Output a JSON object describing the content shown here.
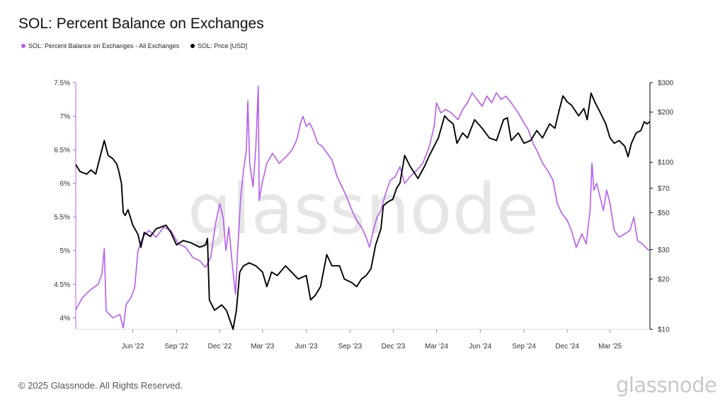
{
  "title": "SOL: Percent Balance on Exchanges",
  "footer": "© 2025 Glassnode. All Rights Reserved.",
  "brand": "glassnode",
  "watermark": "glassnode",
  "chart_data": {
    "type": "line",
    "title": "SOL: Percent Balance on Exchanges",
    "legend_position": "top-left",
    "grid": false,
    "x_range": [
      "2022-02-01",
      "2025-05-24"
    ],
    "x_ticks": [
      {
        "date": "2022-06-01",
        "label": "Jun '22"
      },
      {
        "date": "2022-09-01",
        "label": "Sep '22"
      },
      {
        "date": "2022-12-01",
        "label": "Dec '22"
      },
      {
        "date": "2023-03-01",
        "label": "Mar '23"
      },
      {
        "date": "2023-06-01",
        "label": "Jun '23"
      },
      {
        "date": "2023-09-01",
        "label": "Sep '23"
      },
      {
        "date": "2023-12-01",
        "label": "Dec '23"
      },
      {
        "date": "2024-03-01",
        "label": "Mar '24"
      },
      {
        "date": "2024-06-01",
        "label": "Jun '24"
      },
      {
        "date": "2024-09-01",
        "label": "Sep '24"
      },
      {
        "date": "2024-12-01",
        "label": "Dec '24"
      },
      {
        "date": "2025-03-01",
        "label": "Mar '25"
      }
    ],
    "y_left": {
      "range": [
        3.83,
        7.5
      ],
      "ticks": [
        {
          "v": 4.0,
          "label": "4%"
        },
        {
          "v": 4.5,
          "label": "4.5%"
        },
        {
          "v": 5.0,
          "label": "5%"
        },
        {
          "v": 5.5,
          "label": "5.5%"
        },
        {
          "v": 6.0,
          "label": "6%"
        },
        {
          "v": 6.5,
          "label": "6.5%"
        },
        {
          "v": 7.0,
          "label": "7%"
        },
        {
          "v": 7.5,
          "label": "7.5%"
        }
      ]
    },
    "y_right": {
      "scale": "log",
      "range": [
        10,
        300
      ],
      "ticks": [
        {
          "v": 10,
          "label": "$10"
        },
        {
          "v": 20,
          "label": "$20"
        },
        {
          "v": 30,
          "label": "$30"
        },
        {
          "v": 50,
          "label": "$50"
        },
        {
          "v": 70,
          "label": "$70"
        },
        {
          "v": 100,
          "label": "$100"
        },
        {
          "v": 200,
          "label": "$200"
        },
        {
          "v": 300,
          "label": "$300"
        }
      ]
    },
    "series": [
      {
        "name": "SOL: Percent Balance on Exchanges - All Exchanges",
        "color": "#b55cf0",
        "axis": "left",
        "points": [
          [
            "2022-02-01",
            4.12
          ],
          [
            "2022-02-15",
            4.3
          ],
          [
            "2022-03-01",
            4.4
          ],
          [
            "2022-03-20",
            4.5
          ],
          [
            "2022-03-28",
            4.65
          ],
          [
            "2022-04-02",
            5.03
          ],
          [
            "2022-04-06",
            4.1
          ],
          [
            "2022-04-20",
            4.0
          ],
          [
            "2022-05-05",
            4.05
          ],
          [
            "2022-05-12",
            3.85
          ],
          [
            "2022-05-18",
            4.2
          ],
          [
            "2022-05-28",
            4.3
          ],
          [
            "2022-06-05",
            4.45
          ],
          [
            "2022-06-12",
            5.0
          ],
          [
            "2022-06-22",
            5.2
          ],
          [
            "2022-07-05",
            5.3
          ],
          [
            "2022-07-20",
            5.2
          ],
          [
            "2022-08-05",
            5.35
          ],
          [
            "2022-08-20",
            5.3
          ],
          [
            "2022-09-05",
            5.1
          ],
          [
            "2022-09-20",
            5.05
          ],
          [
            "2022-10-05",
            4.9
          ],
          [
            "2022-10-20",
            4.85
          ],
          [
            "2022-11-01",
            4.75
          ],
          [
            "2022-11-12",
            4.9
          ],
          [
            "2022-11-22",
            5.4
          ],
          [
            "2022-12-01",
            5.7
          ],
          [
            "2022-12-08",
            5.5
          ],
          [
            "2022-12-14",
            5.0
          ],
          [
            "2022-12-20",
            5.35
          ],
          [
            "2022-12-28",
            4.75
          ],
          [
            "2023-01-03",
            4.35
          ],
          [
            "2023-01-08",
            5.05
          ],
          [
            "2023-01-14",
            5.8
          ],
          [
            "2023-01-20",
            6.2
          ],
          [
            "2023-01-26",
            6.5
          ],
          [
            "2023-01-29",
            7.23
          ],
          [
            "2023-02-02",
            6.3
          ],
          [
            "2023-02-09",
            5.95
          ],
          [
            "2023-02-15",
            6.55
          ],
          [
            "2023-02-20",
            7.45
          ],
          [
            "2023-02-22",
            5.75
          ],
          [
            "2023-02-28",
            6.0
          ],
          [
            "2023-03-10",
            6.3
          ],
          [
            "2023-03-22",
            6.45
          ],
          [
            "2023-04-05",
            6.3
          ],
          [
            "2023-04-20",
            6.4
          ],
          [
            "2023-05-02",
            6.5
          ],
          [
            "2023-05-12",
            6.65
          ],
          [
            "2023-05-20",
            6.9
          ],
          [
            "2023-05-25",
            7.0
          ],
          [
            "2023-06-01",
            6.85
          ],
          [
            "2023-06-08",
            6.9
          ],
          [
            "2023-06-15",
            6.8
          ],
          [
            "2023-06-25",
            6.6
          ],
          [
            "2023-07-05",
            6.55
          ],
          [
            "2023-07-15",
            6.45
          ],
          [
            "2023-07-25",
            6.35
          ],
          [
            "2023-08-05",
            6.1
          ],
          [
            "2023-08-15",
            5.95
          ],
          [
            "2023-08-25",
            5.8
          ],
          [
            "2023-09-05",
            5.6
          ],
          [
            "2023-09-15",
            5.45
          ],
          [
            "2023-09-25",
            5.35
          ],
          [
            "2023-10-05",
            5.2
          ],
          [
            "2023-10-12",
            5.05
          ],
          [
            "2023-10-20",
            5.3
          ],
          [
            "2023-10-28",
            5.5
          ],
          [
            "2023-11-05",
            5.6
          ],
          [
            "2023-11-15",
            5.85
          ],
          [
            "2023-11-25",
            6.05
          ],
          [
            "2023-12-05",
            6.1
          ],
          [
            "2023-12-15",
            6.25
          ],
          [
            "2023-12-25",
            6.0
          ],
          [
            "2024-01-05",
            6.1
          ],
          [
            "2024-01-20",
            6.2
          ],
          [
            "2024-02-01",
            6.3
          ],
          [
            "2024-02-15",
            6.55
          ],
          [
            "2024-02-25",
            6.85
          ],
          [
            "2024-03-01",
            7.2
          ],
          [
            "2024-03-10",
            7.05
          ],
          [
            "2024-03-20",
            7.1
          ],
          [
            "2024-04-01",
            7.05
          ],
          [
            "2024-04-15",
            6.95
          ],
          [
            "2024-04-25",
            7.1
          ],
          [
            "2024-05-05",
            7.2
          ],
          [
            "2024-05-15",
            7.35
          ],
          [
            "2024-05-25",
            7.25
          ],
          [
            "2024-06-05",
            7.15
          ],
          [
            "2024-06-15",
            7.3
          ],
          [
            "2024-06-25",
            7.2
          ],
          [
            "2024-07-05",
            7.35
          ],
          [
            "2024-07-15",
            7.25
          ],
          [
            "2024-07-25",
            7.3
          ],
          [
            "2024-08-05",
            7.2
          ],
          [
            "2024-08-20",
            7.05
          ],
          [
            "2024-09-01",
            6.9
          ],
          [
            "2024-09-10",
            6.8
          ],
          [
            "2024-09-20",
            6.6
          ],
          [
            "2024-10-01",
            6.45
          ],
          [
            "2024-10-10",
            6.3
          ],
          [
            "2024-10-20",
            6.2
          ],
          [
            "2024-11-01",
            6.05
          ],
          [
            "2024-11-10",
            5.7
          ],
          [
            "2024-11-20",
            5.55
          ],
          [
            "2024-12-01",
            5.45
          ],
          [
            "2024-12-10",
            5.3
          ],
          [
            "2024-12-20",
            5.05
          ],
          [
            "2025-01-01",
            5.25
          ],
          [
            "2025-01-10",
            5.1
          ],
          [
            "2025-01-18",
            5.6
          ],
          [
            "2025-01-22",
            6.3
          ],
          [
            "2025-01-26",
            5.9
          ],
          [
            "2025-02-01",
            6.0
          ],
          [
            "2025-02-08",
            5.8
          ],
          [
            "2025-02-15",
            5.6
          ],
          [
            "2025-02-22",
            5.9
          ],
          [
            "2025-03-01",
            5.7
          ],
          [
            "2025-03-10",
            5.3
          ],
          [
            "2025-03-20",
            5.2
          ],
          [
            "2025-04-01",
            5.25
          ],
          [
            "2025-04-12",
            5.3
          ],
          [
            "2025-04-20",
            5.5
          ],
          [
            "2025-04-28",
            5.15
          ],
          [
            "2025-05-08",
            5.1
          ],
          [
            "2025-05-15",
            5.05
          ],
          [
            "2025-05-22",
            5.0
          ]
        ]
      },
      {
        "name": "SOL: Price [USD]",
        "color": "#000000",
        "axis": "right",
        "points": [
          [
            "2022-02-01",
            97
          ],
          [
            "2022-02-10",
            88
          ],
          [
            "2022-02-24",
            85
          ],
          [
            "2022-03-05",
            90
          ],
          [
            "2022-03-15",
            85
          ],
          [
            "2022-03-25",
            110
          ],
          [
            "2022-04-02",
            135
          ],
          [
            "2022-04-10",
            110
          ],
          [
            "2022-04-20",
            105
          ],
          [
            "2022-04-28",
            98
          ],
          [
            "2022-05-02",
            90
          ],
          [
            "2022-05-08",
            75
          ],
          [
            "2022-05-12",
            50
          ],
          [
            "2022-05-16",
            48
          ],
          [
            "2022-05-22",
            52
          ],
          [
            "2022-06-01",
            42
          ],
          [
            "2022-06-12",
            37
          ],
          [
            "2022-06-18",
            31
          ],
          [
            "2022-06-25",
            38
          ],
          [
            "2022-07-08",
            36
          ],
          [
            "2022-07-20",
            40
          ],
          [
            "2022-08-10",
            42
          ],
          [
            "2022-08-20",
            38
          ],
          [
            "2022-09-01",
            32
          ],
          [
            "2022-09-15",
            34
          ],
          [
            "2022-10-01",
            33
          ],
          [
            "2022-10-20",
            31
          ],
          [
            "2022-11-01",
            32
          ],
          [
            "2022-11-05",
            35
          ],
          [
            "2022-11-09",
            15
          ],
          [
            "2022-11-20",
            13
          ],
          [
            "2022-12-05",
            14
          ],
          [
            "2022-12-15",
            13
          ],
          [
            "2022-12-29",
            10
          ],
          [
            "2023-01-05",
            13
          ],
          [
            "2023-01-12",
            22
          ],
          [
            "2023-01-20",
            24
          ],
          [
            "2023-02-01",
            25
          ],
          [
            "2023-02-15",
            24
          ],
          [
            "2023-03-01",
            22
          ],
          [
            "2023-03-10",
            18
          ],
          [
            "2023-03-20",
            22
          ],
          [
            "2023-04-01",
            21
          ],
          [
            "2023-04-18",
            24
          ],
          [
            "2023-05-01",
            22
          ],
          [
            "2023-05-15",
            20
          ],
          [
            "2023-06-01",
            21
          ],
          [
            "2023-06-10",
            15
          ],
          [
            "2023-06-20",
            16
          ],
          [
            "2023-07-01",
            18
          ],
          [
            "2023-07-14",
            28
          ],
          [
            "2023-07-25",
            24
          ],
          [
            "2023-08-10",
            24
          ],
          [
            "2023-08-20",
            20
          ],
          [
            "2023-09-05",
            19
          ],
          [
            "2023-09-15",
            18
          ],
          [
            "2023-09-25",
            20
          ],
          [
            "2023-10-05",
            21
          ],
          [
            "2023-10-15",
            23
          ],
          [
            "2023-10-25",
            32
          ],
          [
            "2023-11-05",
            40
          ],
          [
            "2023-11-10",
            55
          ],
          [
            "2023-11-20",
            58
          ],
          [
            "2023-11-30",
            60
          ],
          [
            "2023-12-08",
            70
          ],
          [
            "2023-12-15",
            75
          ],
          [
            "2023-12-25",
            110
          ],
          [
            "2024-01-05",
            95
          ],
          [
            "2024-01-22",
            80
          ],
          [
            "2024-02-05",
            95
          ],
          [
            "2024-02-15",
            110
          ],
          [
            "2024-02-25",
            125
          ],
          [
            "2024-03-05",
            140
          ],
          [
            "2024-03-18",
            190
          ],
          [
            "2024-03-25",
            180
          ],
          [
            "2024-04-05",
            170
          ],
          [
            "2024-04-13",
            130
          ],
          [
            "2024-04-25",
            150
          ],
          [
            "2024-05-05",
            140
          ],
          [
            "2024-05-20",
            180
          ],
          [
            "2024-06-05",
            160
          ],
          [
            "2024-06-20",
            140
          ],
          [
            "2024-07-05",
            135
          ],
          [
            "2024-07-20",
            180
          ],
          [
            "2024-07-28",
            185
          ],
          [
            "2024-08-05",
            135
          ],
          [
            "2024-08-20",
            150
          ],
          [
            "2024-09-01",
            130
          ],
          [
            "2024-09-15",
            135
          ],
          [
            "2024-09-28",
            155
          ],
          [
            "2024-10-10",
            140
          ],
          [
            "2024-10-25",
            170
          ],
          [
            "2024-11-05",
            160
          ],
          [
            "2024-11-15",
            210
          ],
          [
            "2024-11-22",
            250
          ],
          [
            "2024-12-01",
            230
          ],
          [
            "2024-12-10",
            220
          ],
          [
            "2024-12-25",
            190
          ],
          [
            "2025-01-05",
            210
          ],
          [
            "2025-01-12",
            180
          ],
          [
            "2025-01-20",
            260
          ],
          [
            "2025-01-28",
            230
          ],
          [
            "2025-02-08",
            200
          ],
          [
            "2025-02-20",
            170
          ],
          [
            "2025-03-01",
            140
          ],
          [
            "2025-03-10",
            130
          ],
          [
            "2025-03-20",
            135
          ],
          [
            "2025-04-01",
            125
          ],
          [
            "2025-04-08",
            108
          ],
          [
            "2025-04-15",
            130
          ],
          [
            "2025-04-25",
            150
          ],
          [
            "2025-05-05",
            155
          ],
          [
            "2025-05-12",
            175
          ],
          [
            "2025-05-18",
            170
          ],
          [
            "2025-05-24",
            175
          ]
        ]
      }
    ]
  }
}
